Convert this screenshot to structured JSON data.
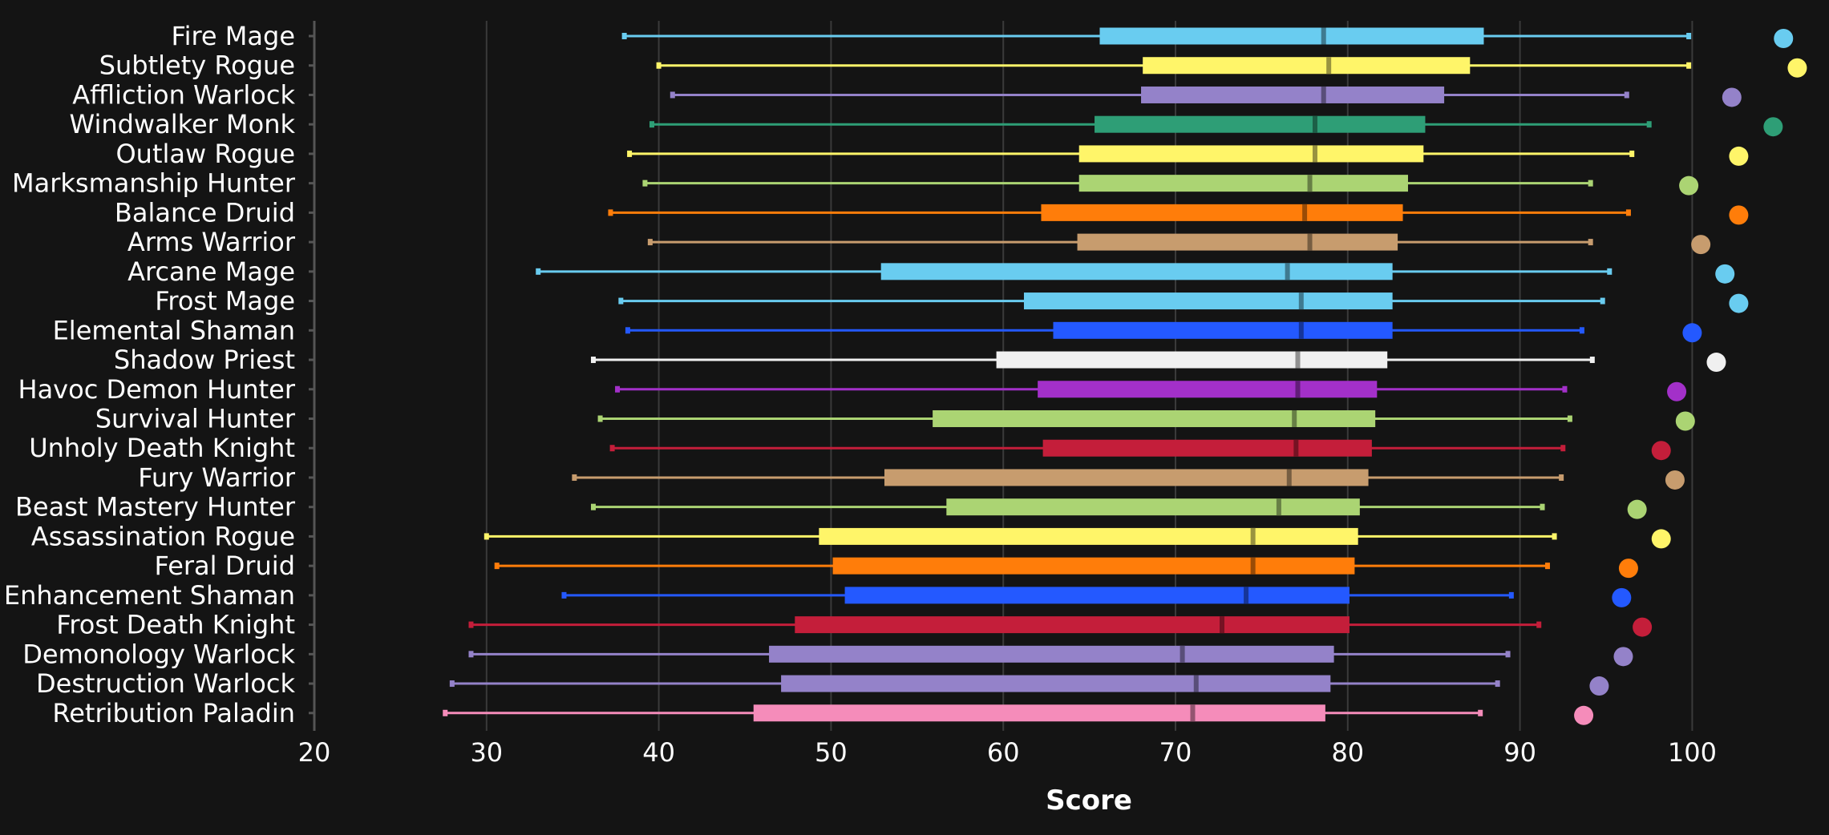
{
  "chart_data": {
    "type": "boxplot",
    "title": "",
    "xlabel": "Score",
    "ylabel": "",
    "xlim": [
      20,
      107
    ],
    "xticks": [
      20,
      30,
      40,
      50,
      60,
      70,
      80,
      90,
      100
    ],
    "grid": "vertical",
    "background": "#141414",
    "series": [
      {
        "name": "Fire Mage",
        "color": "#69CCF0",
        "min": 38.0,
        "q1": 65.6,
        "median": 78.6,
        "q3": 87.9,
        "max": 99.8,
        "top": 105.3
      },
      {
        "name": "Subtlety Rogue",
        "color": "#FFF569",
        "min": 40.0,
        "q1": 68.1,
        "median": 78.9,
        "q3": 87.1,
        "max": 99.8,
        "top": 106.1
      },
      {
        "name": "Affliction Warlock",
        "color": "#9482C9",
        "min": 40.8,
        "q1": 68.0,
        "median": 78.6,
        "q3": 85.6,
        "max": 96.2,
        "top": 102.3
      },
      {
        "name": "Windwalker Monk",
        "color": "#2E9E76",
        "min": 39.6,
        "q1": 65.3,
        "median": 78.1,
        "q3": 84.5,
        "max": 97.5,
        "top": 104.7
      },
      {
        "name": "Outlaw Rogue",
        "color": "#FFF569",
        "min": 38.3,
        "q1": 64.4,
        "median": 78.1,
        "q3": 84.4,
        "max": 96.5,
        "top": 102.7
      },
      {
        "name": "Marksmanship Hunter",
        "color": "#ABD473",
        "min": 39.2,
        "q1": 64.4,
        "median": 77.8,
        "q3": 83.5,
        "max": 94.1,
        "top": 99.8
      },
      {
        "name": "Balance Druid",
        "color": "#FF7D0A",
        "min": 37.2,
        "q1": 62.2,
        "median": 77.5,
        "q3": 83.2,
        "max": 96.3,
        "top": 102.7
      },
      {
        "name": "Arms Warrior",
        "color": "#C79C6E",
        "min": 39.5,
        "q1": 64.3,
        "median": 77.8,
        "q3": 82.9,
        "max": 94.1,
        "top": 100.5
      },
      {
        "name": "Arcane Mage",
        "color": "#69CCF0",
        "min": 33.0,
        "q1": 52.9,
        "median": 76.5,
        "q3": 82.6,
        "max": 95.2,
        "top": 101.9
      },
      {
        "name": "Frost Mage",
        "color": "#69CCF0",
        "min": 37.8,
        "q1": 61.2,
        "median": 77.3,
        "q3": 82.6,
        "max": 94.8,
        "top": 102.7
      },
      {
        "name": "Elemental Shaman",
        "color": "#2459FF",
        "min": 38.2,
        "q1": 62.9,
        "median": 77.3,
        "q3": 82.6,
        "max": 93.6,
        "top": 100.0
      },
      {
        "name": "Shadow Priest",
        "color": "#F0F0F0",
        "min": 36.2,
        "q1": 59.6,
        "median": 77.1,
        "q3": 82.3,
        "max": 94.2,
        "top": 101.4
      },
      {
        "name": "Havoc Demon Hunter",
        "color": "#A330C9",
        "min": 37.6,
        "q1": 62.0,
        "median": 77.1,
        "q3": 81.7,
        "max": 92.6,
        "top": 99.1
      },
      {
        "name": "Survival Hunter",
        "color": "#ABD473",
        "min": 36.6,
        "q1": 55.9,
        "median": 76.9,
        "q3": 81.6,
        "max": 92.9,
        "top": 99.6
      },
      {
        "name": "Unholy Death Knight",
        "color": "#C41E3A",
        "min": 37.3,
        "q1": 62.3,
        "median": 77.0,
        "q3": 81.4,
        "max": 92.5,
        "top": 98.2
      },
      {
        "name": "Fury Warrior",
        "color": "#C79C6E",
        "min": 35.1,
        "q1": 53.1,
        "median": 76.6,
        "q3": 81.2,
        "max": 92.4,
        "top": 99.0
      },
      {
        "name": "Beast Mastery Hunter",
        "color": "#ABD473",
        "min": 36.2,
        "q1": 56.7,
        "median": 76.0,
        "q3": 80.7,
        "max": 91.3,
        "top": 96.8
      },
      {
        "name": "Assassination Rogue",
        "color": "#FFF569",
        "min": 30.0,
        "q1": 49.3,
        "median": 74.5,
        "q3": 80.6,
        "max": 92.0,
        "top": 98.2
      },
      {
        "name": "Feral Druid",
        "color": "#FF7D0A",
        "min": 30.6,
        "q1": 50.1,
        "median": 74.5,
        "q3": 80.4,
        "max": 91.6,
        "top": 96.3
      },
      {
        "name": "Enhancement Shaman",
        "color": "#2459FF",
        "min": 34.5,
        "q1": 50.8,
        "median": 74.1,
        "q3": 80.1,
        "max": 89.5,
        "top": 95.9
      },
      {
        "name": "Frost Death Knight",
        "color": "#C41E3A",
        "min": 29.1,
        "q1": 47.9,
        "median": 72.7,
        "q3": 80.1,
        "max": 91.1,
        "top": 97.1
      },
      {
        "name": "Demonology Warlock",
        "color": "#9482C9",
        "min": 29.1,
        "q1": 46.4,
        "median": 70.4,
        "q3": 79.2,
        "max": 89.3,
        "top": 96.0
      },
      {
        "name": "Destruction Warlock",
        "color": "#9482C9",
        "min": 28.0,
        "q1": 47.1,
        "median": 71.2,
        "q3": 79.0,
        "max": 88.7,
        "top": 94.6
      },
      {
        "name": "Retribution Paladin",
        "color": "#F58CBA",
        "min": 27.6,
        "q1": 45.5,
        "median": 71.0,
        "q3": 78.7,
        "max": 87.7,
        "top": 93.7
      }
    ]
  }
}
